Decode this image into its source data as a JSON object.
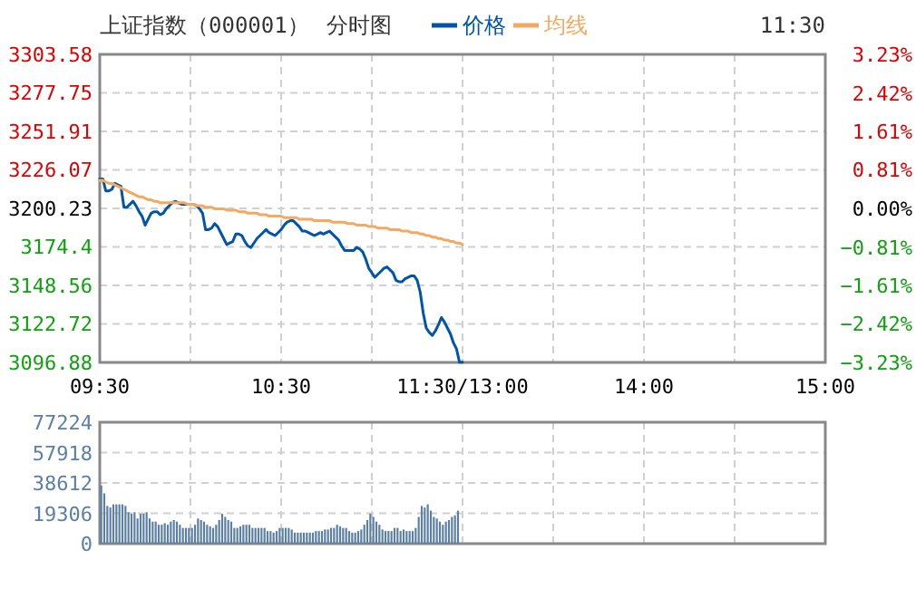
{
  "chart_data": [
    {
      "type": "line",
      "title": "上证指数（000001）",
      "subtitle": "分时图",
      "annotations": [
        "11:30"
      ],
      "legend": "top",
      "grid": true,
      "categories": [
        "09:30",
        null,
        null,
        null,
        null,
        null,
        null,
        null,
        null,
        null,
        null,
        null,
        null,
        null,
        null,
        null,
        null,
        null,
        null,
        null,
        null,
        null,
        null,
        null,
        null,
        null,
        null,
        null,
        null,
        null,
        null,
        null,
        null,
        null,
        null,
        null,
        null,
        null,
        null,
        null,
        null,
        null,
        null,
        null,
        null,
        null,
        null,
        null,
        null,
        null,
        null,
        null,
        null,
        null,
        null,
        null,
        null,
        null,
        null,
        null,
        "10:30",
        null,
        null,
        null,
        null,
        null,
        null,
        null,
        null,
        null,
        null,
        null,
        null,
        null,
        null,
        null,
        null,
        null,
        null,
        null,
        null,
        null,
        null,
        null,
        null,
        null,
        null,
        null,
        null,
        null,
        null,
        null,
        null,
        null,
        null,
        null,
        null,
        null,
        null,
        null,
        null,
        null,
        null,
        null,
        null,
        null,
        null,
        null,
        null,
        null,
        null,
        null,
        null,
        null,
        null,
        null,
        null,
        null,
        null,
        null,
        "11:30/13:00",
        null,
        null,
        null,
        null,
        null,
        null,
        null,
        null,
        null,
        null,
        null,
        null,
        null,
        null,
        null,
        null,
        null,
        null,
        null,
        null,
        null,
        null,
        null,
        null,
        null,
        null,
        null,
        null,
        null,
        null,
        null,
        null,
        null,
        null,
        null,
        null,
        null,
        null,
        null,
        null,
        null,
        null,
        null,
        null,
        null,
        null,
        null,
        null,
        null,
        null,
        null,
        null,
        null,
        null,
        null,
        null,
        null,
        null,
        null,
        "14:00",
        null,
        null,
        null,
        null,
        null,
        null,
        null,
        null,
        null,
        null,
        null,
        null,
        null,
        null,
        null,
        null,
        null,
        null,
        null,
        null,
        null,
        null,
        null,
        null,
        null,
        null,
        null,
        null,
        null,
        null,
        null,
        null,
        null,
        null,
        null,
        null,
        null,
        null,
        null,
        null,
        null,
        null,
        null,
        null,
        null,
        null,
        null,
        null,
        null,
        null,
        null,
        null,
        null,
        null,
        null,
        null,
        null,
        null,
        null,
        "15:00"
      ],
      "ylim": [
        3096.88,
        3303.58
      ],
      "yticks": [
        3096.88,
        3122.72,
        3148.56,
        3174.4,
        3200.23,
        3226.07,
        3251.91,
        3277.75,
        3303.58
      ],
      "y2lim": [
        -3.23,
        3.23
      ],
      "y2ticks": [
        {
          "value": -3.23,
          "label": "−3.23%"
        },
        {
          "value": -2.42,
          "label": "−2.42%"
        },
        {
          "value": -1.61,
          "label": "−1.61%"
        },
        {
          "value": -0.81,
          "label": "−0.81%"
        },
        {
          "value": 0,
          "label": "0.00%"
        },
        {
          "value": 0.81,
          "label": "0.81%"
        },
        {
          "value": 1.61,
          "label": "1.61%"
        },
        {
          "value": 2.42,
          "label": "2.42%"
        },
        {
          "value": 3.23,
          "label": "3.23%"
        }
      ],
      "series": [
        {
          "name": "价格",
          "color": "#0055aa",
          "values": [
            3220,
            3220,
            3212,
            3212,
            3213,
            3217,
            3216,
            3215,
            3201,
            3201,
            3203,
            3205,
            3202,
            3198,
            3195,
            3189,
            3193,
            3197,
            3198,
            3198,
            3196,
            3197,
            3200,
            3202,
            3204,
            3205,
            3204,
            3203,
            3203,
            3203,
            3203,
            3203,
            3202,
            3200,
            3197,
            3186,
            3186,
            3187,
            3190,
            3188,
            3184,
            3180,
            3176,
            3177,
            3178,
            3183,
            3183,
            3182,
            3178,
            3175,
            3174,
            3177,
            3180,
            3182,
            3184,
            3186,
            3184,
            3183,
            3182,
            3184,
            3186,
            3189,
            3191,
            3192,
            3192,
            3190,
            3188,
            3185,
            3185,
            3184,
            3183,
            3182,
            3183,
            3184,
            3183,
            3184,
            3185,
            3183,
            3181,
            3179,
            3175,
            3172,
            3172,
            3172,
            3172,
            3174,
            3173,
            3171,
            3166,
            3160,
            3157,
            3154,
            3156,
            3158,
            3160,
            3161,
            3159,
            3157,
            3152,
            3151,
            3151,
            3153,
            3154,
            3155,
            3155,
            3152,
            3144,
            3130,
            3120,
            3117,
            3115,
            3118,
            3122,
            3127,
            3124,
            3120,
            3116,
            3110,
            3106,
            3097,
            3097,
            null,
            null,
            null,
            null,
            null,
            null,
            null,
            null,
            null,
            null,
            null,
            null,
            null,
            null,
            null,
            null,
            null,
            null,
            null,
            null,
            null,
            null,
            null,
            null,
            null,
            null,
            null,
            null,
            null,
            null,
            null,
            null,
            null,
            null,
            null,
            null,
            null,
            null,
            null,
            null,
            null,
            null,
            null,
            null,
            null,
            null,
            null,
            null,
            null,
            null,
            null,
            null,
            null,
            null,
            null,
            null,
            null,
            null,
            null,
            null,
            null,
            null,
            null,
            null,
            null,
            null,
            null,
            null,
            null,
            null,
            null,
            null,
            null,
            null,
            null,
            null,
            null,
            null,
            null,
            null,
            null,
            null,
            null,
            null,
            null,
            null,
            null,
            null,
            null,
            null,
            null,
            null,
            null,
            null,
            null,
            null,
            null,
            null,
            null,
            null,
            null,
            null,
            null,
            null,
            null,
            null,
            null,
            null,
            null,
            null,
            null,
            null,
            null,
            null,
            null,
            null,
            null,
            null,
            null,
            null
          ]
        },
        {
          "name": "均线",
          "color": "#f5a860",
          "values": [
            3219,
            3219,
            3218,
            3217,
            3217,
            3216,
            3215,
            3214,
            3213,
            3212,
            3211,
            3210,
            3209,
            3208,
            3208,
            3207,
            3206,
            3206,
            3205,
            3205,
            3204,
            3204,
            3204,
            3204,
            3204,
            3204,
            3204,
            3204,
            3204,
            3203,
            3203,
            3203,
            3202,
            3202,
            3202,
            3201,
            3201,
            3201,
            3200,
            3200,
            3200,
            3200,
            3199,
            3199,
            3199,
            3199,
            3198,
            3198,
            3198,
            3197,
            3197,
            3197,
            3197,
            3196,
            3196,
            3196,
            3195,
            3195,
            3195,
            3195,
            3195,
            3194,
            3194,
            3194,
            3194,
            3194,
            3193,
            3193,
            3193,
            3193,
            3193,
            3192,
            3192,
            3192,
            3192,
            3192,
            3192,
            3191,
            3191,
            3191,
            3191,
            3191,
            3190,
            3190,
            3190,
            3189,
            3189,
            3189,
            3189,
            3188,
            3188,
            3188,
            3187,
            3187,
            3187,
            3187,
            3186,
            3186,
            3186,
            3186,
            3185,
            3185,
            3185,
            3184,
            3184,
            3184,
            3183,
            3183,
            3182,
            3182,
            3181,
            3181,
            3180,
            3180,
            3179,
            3179,
            3178,
            3178,
            3177,
            3177,
            3176,
            null,
            null,
            null,
            null,
            null,
            null,
            null,
            null,
            null,
            null,
            null,
            null,
            null,
            null,
            null,
            null,
            null,
            null,
            null,
            null,
            null,
            null,
            null,
            null,
            null,
            null,
            null,
            null,
            null,
            null,
            null,
            null,
            null,
            null,
            null,
            null,
            null,
            null,
            null,
            null,
            null,
            null,
            null,
            null,
            null,
            null,
            null,
            null,
            null,
            null,
            null,
            null,
            null,
            null,
            null,
            null,
            null,
            null,
            null,
            null,
            null,
            null,
            null,
            null,
            null,
            null,
            null,
            null,
            null,
            null,
            null,
            null,
            null,
            null,
            null,
            null,
            null,
            null,
            null,
            null,
            null,
            null,
            null,
            null,
            null,
            null,
            null,
            null,
            null,
            null,
            null,
            null,
            null,
            null,
            null,
            null,
            null,
            null,
            null,
            null,
            null,
            null,
            null,
            null,
            null,
            null,
            null,
            null,
            null,
            null,
            null,
            null,
            null,
            null,
            null,
            null,
            null,
            null,
            null,
            null
          ]
        }
      ]
    },
    {
      "type": "bar",
      "grid": true,
      "tick_labels": "y",
      "categories": [
        null,
        null,
        null,
        null,
        null,
        null,
        null,
        null,
        null,
        null,
        null,
        null,
        null,
        null,
        null,
        null,
        null,
        null,
        null,
        null,
        null,
        null,
        null,
        null,
        null,
        null,
        null,
        null,
        null,
        null,
        null,
        null,
        null,
        null,
        null,
        null,
        null,
        null,
        null,
        null,
        null,
        null,
        null,
        null,
        null,
        null,
        null,
        null,
        null,
        null,
        null,
        null,
        null,
        null,
        null,
        null,
        null,
        null,
        null,
        null,
        null,
        null,
        null,
        null,
        null,
        null,
        null,
        null,
        null,
        null,
        null,
        null,
        null,
        null,
        null,
        null,
        null,
        null,
        null,
        null,
        null,
        null,
        null,
        null,
        null,
        null,
        null,
        null,
        null,
        null,
        null,
        null,
        null,
        null,
        null,
        null,
        null,
        null,
        null,
        null,
        null,
        null,
        null,
        null,
        null,
        null,
        null,
        null,
        null,
        null,
        null,
        null,
        null,
        null,
        null,
        null,
        null,
        null,
        null,
        null,
        null,
        null,
        null,
        null,
        null,
        null,
        null,
        null,
        null,
        null,
        null,
        null,
        null,
        null,
        null,
        null,
        null,
        null,
        null,
        null,
        null,
        null,
        null,
        null,
        null,
        null,
        null,
        null,
        null,
        null,
        null,
        null,
        null,
        null,
        null,
        null,
        null,
        null,
        null,
        null,
        null,
        null,
        null,
        null,
        null,
        null,
        null,
        null,
        null,
        null,
        null,
        null,
        null,
        null,
        null,
        null,
        null,
        null,
        null,
        null,
        null,
        null,
        null,
        null,
        null,
        null,
        null,
        null,
        null,
        null,
        null,
        null,
        null,
        null,
        null,
        null,
        null,
        null,
        null,
        null,
        null,
        null,
        null,
        null,
        null,
        null,
        null,
        null,
        null,
        null,
        null,
        null,
        null,
        null,
        null,
        null,
        null,
        null,
        null,
        null,
        null,
        null,
        null,
        null,
        null,
        null,
        null,
        null,
        null,
        null,
        null,
        null,
        null,
        null,
        null,
        null,
        null,
        null,
        null,
        null
      ],
      "ylim": [
        0,
        77224
      ],
      "yticks": [
        0,
        19306,
        38612,
        57918,
        77224
      ],
      "series": [
        {
          "color": "#5b7fa6",
          "values": [
            37000,
            32000,
            24000,
            23000,
            25000,
            25000,
            25000,
            25000,
            24000,
            20000,
            19000,
            20000,
            16000,
            19000,
            19000,
            20000,
            16000,
            14000,
            14000,
            12000,
            12000,
            13000,
            12000,
            14000,
            15000,
            14000,
            12000,
            10000,
            10000,
            10000,
            10000,
            12000,
            16000,
            15000,
            14000,
            12000,
            11000,
            10000,
            12000,
            15000,
            19000,
            17000,
            15000,
            14000,
            10000,
            10000,
            11000,
            12000,
            12000,
            12000,
            10000,
            10000,
            10000,
            10000,
            10000,
            8000,
            8000,
            7000,
            8000,
            10000,
            10000,
            10000,
            10000,
            9000,
            7000,
            7000,
            7000,
            7000,
            7000,
            7000,
            7000,
            8000,
            8000,
            8000,
            9000,
            9000,
            10000,
            10000,
            12000,
            11000,
            10000,
            10000,
            8000,
            7000,
            7000,
            8000,
            9000,
            12000,
            15000,
            19000,
            17000,
            14000,
            12000,
            9000,
            8000,
            8000,
            8000,
            10000,
            10000,
            8000,
            9000,
            8000,
            8000,
            8000,
            10000,
            17000,
            24000,
            23000,
            25000,
            21000,
            17000,
            16000,
            14000,
            12000,
            14000,
            15000,
            17000,
            18000,
            21000,
            null,
            null,
            null,
            null,
            null,
            null,
            null,
            null,
            null,
            null,
            null,
            null,
            null,
            null,
            null,
            null,
            null,
            null,
            null,
            null,
            null,
            null,
            null,
            null,
            null,
            null,
            null,
            null,
            null,
            null,
            null,
            null,
            null,
            null,
            null,
            null,
            null,
            null,
            null,
            null,
            null,
            null,
            null,
            null,
            null,
            null,
            null,
            null,
            null,
            null,
            null,
            null,
            null,
            null,
            null,
            null,
            null,
            null,
            null,
            null,
            null,
            null,
            null,
            null,
            null,
            null,
            null,
            null,
            null,
            null,
            null,
            null,
            null,
            null,
            null,
            null,
            null,
            null,
            null,
            null,
            null,
            null,
            null,
            null,
            null,
            null,
            null,
            null,
            null,
            null,
            null,
            null,
            null,
            null,
            null,
            null,
            null,
            null,
            null,
            null,
            null,
            null,
            null,
            null,
            null,
            null,
            null,
            null,
            null,
            null,
            null,
            null,
            null,
            null,
            null,
            null,
            null,
            null,
            null,
            null,
            null
          ]
        }
      ]
    }
  ]
}
